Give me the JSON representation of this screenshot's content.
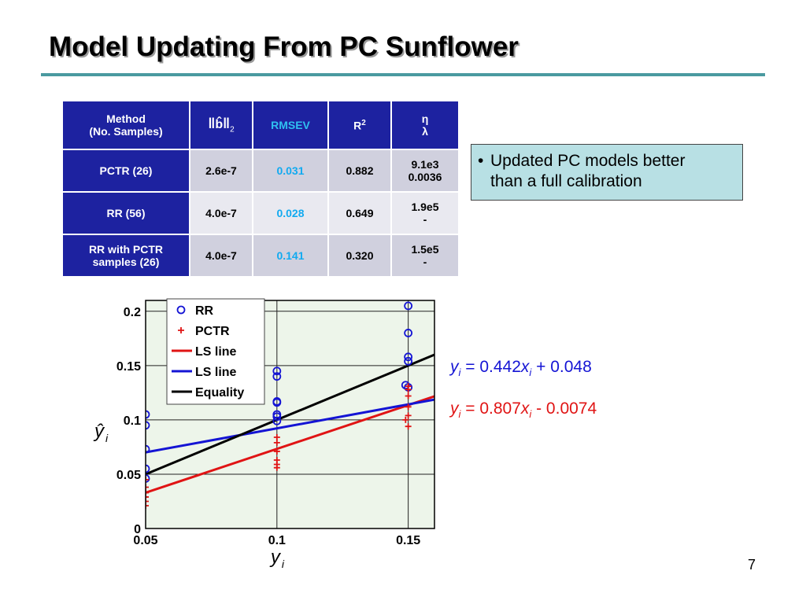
{
  "slide": {
    "title": "Model Updating From PC Sunflower",
    "page_number": "7"
  },
  "table": {
    "headers": {
      "method_line1": "Method",
      "method_line2": "(No. Samples)",
      "norm_symbol": "b",
      "norm_subscript": "2",
      "rmsev": "RMSEV",
      "r2_base": "R",
      "r2_sup": "2",
      "eta": "η",
      "lambda": "λ"
    },
    "rows": [
      {
        "method_line1": "PCTR (26)",
        "method_line2": "",
        "norm": "2.6e-7",
        "rmsev": "0.031",
        "r2": "0.882",
        "eta": "9.1e3",
        "lambda": "0.0036"
      },
      {
        "method_line1": "RR (56)",
        "method_line2": "",
        "norm": "4.0e-7",
        "rmsev": "0.028",
        "r2": "0.649",
        "eta": "1.9e5",
        "lambda": "-"
      },
      {
        "method_line1": "RR with PCTR",
        "method_line2": "samples (26)",
        "norm": "4.0e-7",
        "rmsev": "0.141",
        "r2": "0.320",
        "eta": "1.5e5",
        "lambda": "-"
      }
    ]
  },
  "note": {
    "bullet": "•",
    "line1": "Updated PC models better",
    "line2": "than a full calibration"
  },
  "equations": {
    "blue": {
      "y": "y",
      "sub": "i",
      "eq": " = 0.442",
      "x": "x",
      "xsub": "i",
      "rest": " + 0.048"
    },
    "red": {
      "y": "y",
      "sub": "i",
      "eq": " = 0.807",
      "x": "x",
      "xsub": "i",
      "rest": " - 0.0074"
    }
  },
  "colors": {
    "table_header": "#1d22a0",
    "rmsev_text": "#12aaf0",
    "note_bg": "#b8e0e4",
    "rule": "#4a9aa0",
    "rr_marker": "#1414d4",
    "pctr_marker": "#e01414",
    "ls_red": "#e01414",
    "ls_blue": "#1414d4",
    "equality": "#000000",
    "plot_bg": "#edf5ea"
  },
  "chart_data": {
    "type": "scatter",
    "xlabel": "y",
    "xlabel_sub": "i",
    "ylabel": "ŷ",
    "ylabel_sub": "i",
    "xlim": [
      0.05,
      0.16
    ],
    "ylim": [
      0,
      0.21
    ],
    "x_ticks": [
      0.05,
      0.1,
      0.15
    ],
    "x_tick_labels": [
      "0.05",
      "0.1",
      "0.15"
    ],
    "y_ticks": [
      0,
      0.05,
      0.1,
      0.15,
      0.2
    ],
    "y_tick_labels": [
      "0",
      "0.05",
      "0.1",
      "0.15",
      "0.2"
    ],
    "grid": true,
    "legend_position": "top-center",
    "series": [
      {
        "name": "RR",
        "marker": "circle",
        "color": "#1414d4",
        "points": [
          [
            0.05,
            0.105
          ],
          [
            0.05,
            0.095
          ],
          [
            0.05,
            0.073
          ],
          [
            0.05,
            0.055
          ],
          [
            0.05,
            0.046
          ],
          [
            0.1,
            0.145
          ],
          [
            0.1,
            0.14
          ],
          [
            0.1,
            0.117
          ],
          [
            0.1,
            0.116
          ],
          [
            0.1,
            0.105
          ],
          [
            0.1,
            0.103
          ],
          [
            0.1,
            0.099
          ],
          [
            0.15,
            0.205
          ],
          [
            0.15,
            0.18
          ],
          [
            0.15,
            0.158
          ],
          [
            0.15,
            0.154
          ],
          [
            0.15,
            0.13
          ],
          [
            0.149,
            0.132
          ]
        ]
      },
      {
        "name": "PCTR",
        "marker": "plus",
        "color": "#e01414",
        "points": [
          [
            0.05,
            0.045
          ],
          [
            0.05,
            0.038
          ],
          [
            0.05,
            0.033
          ],
          [
            0.05,
            0.029
          ],
          [
            0.05,
            0.025
          ],
          [
            0.05,
            0.021
          ],
          [
            0.1,
            0.084
          ],
          [
            0.1,
            0.079
          ],
          [
            0.1,
            0.071
          ],
          [
            0.1,
            0.063
          ],
          [
            0.1,
            0.059
          ],
          [
            0.1,
            0.056
          ],
          [
            0.15,
            0.131
          ],
          [
            0.15,
            0.128
          ],
          [
            0.15,
            0.122
          ],
          [
            0.15,
            0.112
          ],
          [
            0.15,
            0.104
          ],
          [
            0.15,
            0.094
          ],
          [
            0.149,
            0.1
          ]
        ]
      }
    ],
    "lines": [
      {
        "name": "LS line",
        "color": "#e01414",
        "slope": 0.807,
        "intercept": -0.0074
      },
      {
        "name": "LS line",
        "color": "#1414d4",
        "slope": 0.442,
        "intercept": 0.048
      },
      {
        "name": "Equality",
        "color": "#000000",
        "slope": 1,
        "intercept": 0
      }
    ],
    "legend": [
      {
        "label": "RR",
        "kind": "circle",
        "color": "#1414d4"
      },
      {
        "label": "PCTR",
        "kind": "plus",
        "color": "#e01414"
      },
      {
        "label": "LS line",
        "kind": "line",
        "color": "#e01414"
      },
      {
        "label": "LS line",
        "kind": "line",
        "color": "#1414d4"
      },
      {
        "label": "Equality",
        "kind": "line",
        "color": "#000000"
      }
    ]
  }
}
